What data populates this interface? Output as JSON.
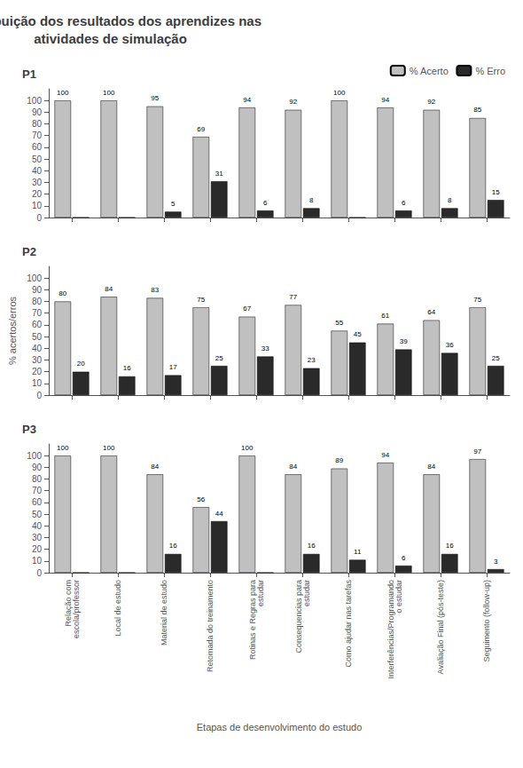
{
  "chart_data": [
    {
      "type": "bar",
      "title": "Distribuição dos resultados dos aprendizes nas\natividades de simulação",
      "subtitle": "P1",
      "categories": [
        null,
        null,
        null,
        null,
        null,
        null,
        null,
        null,
        null,
        null
      ],
      "series": [
        {
          "name": "% Acerto",
          "color": "#c0c0c0",
          "values": [
            100,
            100,
            95,
            69,
            94,
            92,
            100,
            94,
            92,
            85
          ]
        },
        {
          "name": "% Erro",
          "color": "#2a2a2a",
          "values": [
            0,
            0,
            5,
            31,
            6,
            8,
            0,
            6,
            8,
            15
          ],
          "value_labels": [
            null,
            null,
            "5",
            "31",
            "6",
            "8",
            null,
            "6",
            "8",
            "15"
          ]
        }
      ],
      "ylim": [
        0,
        110
      ],
      "yticks": [
        0,
        10,
        20,
        30,
        40,
        50,
        60,
        70,
        80,
        90,
        100
      ],
      "grid": false,
      "legend": "upper right",
      "data_labels": true
    },
    {
      "type": "bar",
      "subtitle": "P2",
      "ylabel": "% acertos/erros",
      "categories": [
        null,
        null,
        null,
        null,
        null,
        null,
        null,
        null,
        null,
        null
      ],
      "series": [
        {
          "name": "% Acerto",
          "color": "#c0c0c0",
          "values": [
            80,
            84,
            83,
            75,
            67,
            77,
            55,
            61,
            64,
            75
          ]
        },
        {
          "name": "% Erro",
          "color": "#2a2a2a",
          "values": [
            20,
            16,
            17,
            25,
            33,
            23,
            45,
            39,
            36,
            25
          ]
        }
      ],
      "ylim": [
        0,
        110
      ],
      "yticks": [
        0,
        10,
        20,
        30,
        40,
        50,
        60,
        70,
        80,
        90,
        100
      ],
      "grid": false,
      "data_labels": true
    },
    {
      "type": "bar",
      "subtitle": "P3",
      "xlabel": "Etapas de desenvolvimento do estudo",
      "categories": [
        "Relação com\nescola/professor",
        "Local de estudo",
        "Material de estudo",
        "Retomada do treinamento",
        "Rotinas e Regras para\nestudar",
        "Consequencias para\nestudar",
        "Como ajudar nas tarefas",
        "Interferências/Programando\no estudar",
        "Avaliação Final (pós-teste)",
        "Seguimento (follow-up)"
      ],
      "series": [
        {
          "name": "% Acerto",
          "color": "#c0c0c0",
          "values": [
            100,
            100,
            84,
            56,
            100,
            84,
            89,
            94,
            84,
            97
          ]
        },
        {
          "name": "% Erro",
          "color": "#2a2a2a",
          "values": [
            0,
            0,
            16,
            44,
            0,
            16,
            11,
            6,
            16,
            3
          ],
          "value_labels": [
            null,
            null,
            "16",
            "44",
            null,
            "16",
            "11",
            "6",
            "16",
            "3"
          ]
        }
      ],
      "ylim": [
        0,
        110
      ],
      "yticks": [
        0,
        10,
        20,
        30,
        40,
        50,
        60,
        70,
        80,
        90,
        100
      ],
      "grid": false,
      "data_labels": true
    }
  ]
}
